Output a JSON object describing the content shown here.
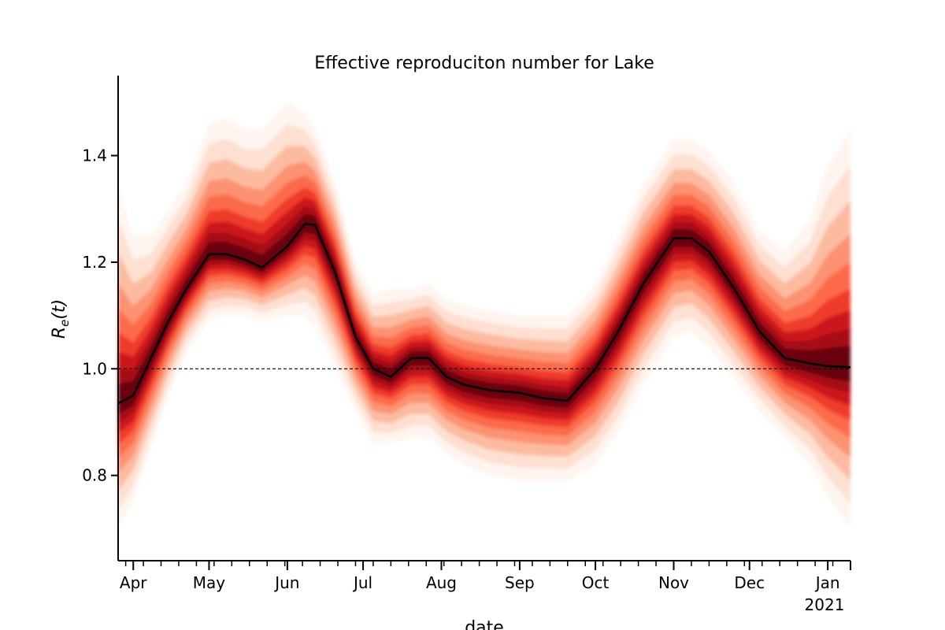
{
  "chart_data": {
    "type": "area",
    "title": "Effective reproduciton number for Lake",
    "xlabel": "date",
    "ylabel": "R_e(t)",
    "ylabel_main": "R",
    "ylabel_sub": "e",
    "ylabel_rest": "(t)",
    "x_range": [
      "2020-03-26",
      "2021-01-10"
    ],
    "ylim": [
      0.64,
      1.55
    ],
    "y_ticks": [
      0.8,
      1.0,
      1.2,
      1.4
    ],
    "y_tick_labels": [
      "0.8",
      "1.0",
      "1.2",
      "1.4"
    ],
    "x_ticks": [
      {
        "date": "2020-04-01",
        "label": "Apr"
      },
      {
        "date": "2020-05-01",
        "label": "May"
      },
      {
        "date": "2020-06-01",
        "label": "Jun"
      },
      {
        "date": "2020-07-01",
        "label": "Jul"
      },
      {
        "date": "2020-08-01",
        "label": "Aug"
      },
      {
        "date": "2020-09-01",
        "label": "Sep"
      },
      {
        "date": "2020-10-01",
        "label": "Oct"
      },
      {
        "date": "2020-11-01",
        "label": "Nov"
      },
      {
        "date": "2020-12-01",
        "label": "Dec"
      },
      {
        "date": "2021-01-01",
        "label": "Jan"
      }
    ],
    "x_year_label": "2021",
    "reference_line": {
      "y": 1.0,
      "style": "dashed"
    },
    "grid": false,
    "legend": "none",
    "colors": {
      "median": "#000000",
      "band_dark": "#67000d",
      "band_mid": "#ef3b2c",
      "band_light": "#fee0d2"
    },
    "series": [
      {
        "x": [
          "2020-03-26",
          "2020-04-01",
          "2020-04-08",
          "2020-04-15",
          "2020-04-22",
          "2020-05-01",
          "2020-05-08",
          "2020-05-15",
          "2020-05-22",
          "2020-06-01",
          "2020-06-08",
          "2020-06-12",
          "2020-06-20",
          "2020-06-28",
          "2020-07-05",
          "2020-07-12",
          "2020-07-20",
          "2020-07-27",
          "2020-08-03",
          "2020-08-10",
          "2020-08-20",
          "2020-09-01",
          "2020-09-10",
          "2020-09-20",
          "2020-10-01",
          "2020-10-10",
          "2020-10-20",
          "2020-11-01",
          "2020-11-08",
          "2020-11-15",
          "2020-11-25",
          "2020-12-05",
          "2020-12-15",
          "2020-12-25",
          "2021-01-01",
          "2021-01-10"
        ],
        "y": [
          0.935,
          0.95,
          1.02,
          1.09,
          1.15,
          1.215,
          1.215,
          1.205,
          1.19,
          1.23,
          1.272,
          1.27,
          1.18,
          1.06,
          1.0,
          0.985,
          1.02,
          1.02,
          0.985,
          0.97,
          0.96,
          0.955,
          0.945,
          0.94,
          1.0,
          1.07,
          1.16,
          1.245,
          1.245,
          1.22,
          1.15,
          1.07,
          1.02,
          1.01,
          1.005,
          1.003
        ],
        "lower": [
          0.7,
          0.75,
          0.85,
          0.95,
          1.03,
          1.09,
          1.1,
          1.1,
          1.09,
          1.1,
          1.1,
          1.08,
          1.0,
          0.92,
          0.86,
          0.86,
          0.87,
          0.87,
          0.84,
          0.82,
          0.8,
          0.79,
          0.79,
          0.79,
          0.82,
          0.88,
          0.97,
          1.06,
          1.07,
          1.04,
          0.98,
          0.92,
          0.87,
          0.82,
          0.76,
          0.7
        ],
        "upper": [
          1.34,
          1.25,
          1.25,
          1.3,
          1.35,
          1.46,
          1.47,
          1.45,
          1.45,
          1.5,
          1.48,
          1.45,
          1.35,
          1.2,
          1.14,
          1.15,
          1.15,
          1.16,
          1.13,
          1.12,
          1.11,
          1.1,
          1.1,
          1.1,
          1.16,
          1.25,
          1.35,
          1.43,
          1.43,
          1.41,
          1.35,
          1.26,
          1.22,
          1.28,
          1.38,
          1.45
        ]
      }
    ]
  }
}
